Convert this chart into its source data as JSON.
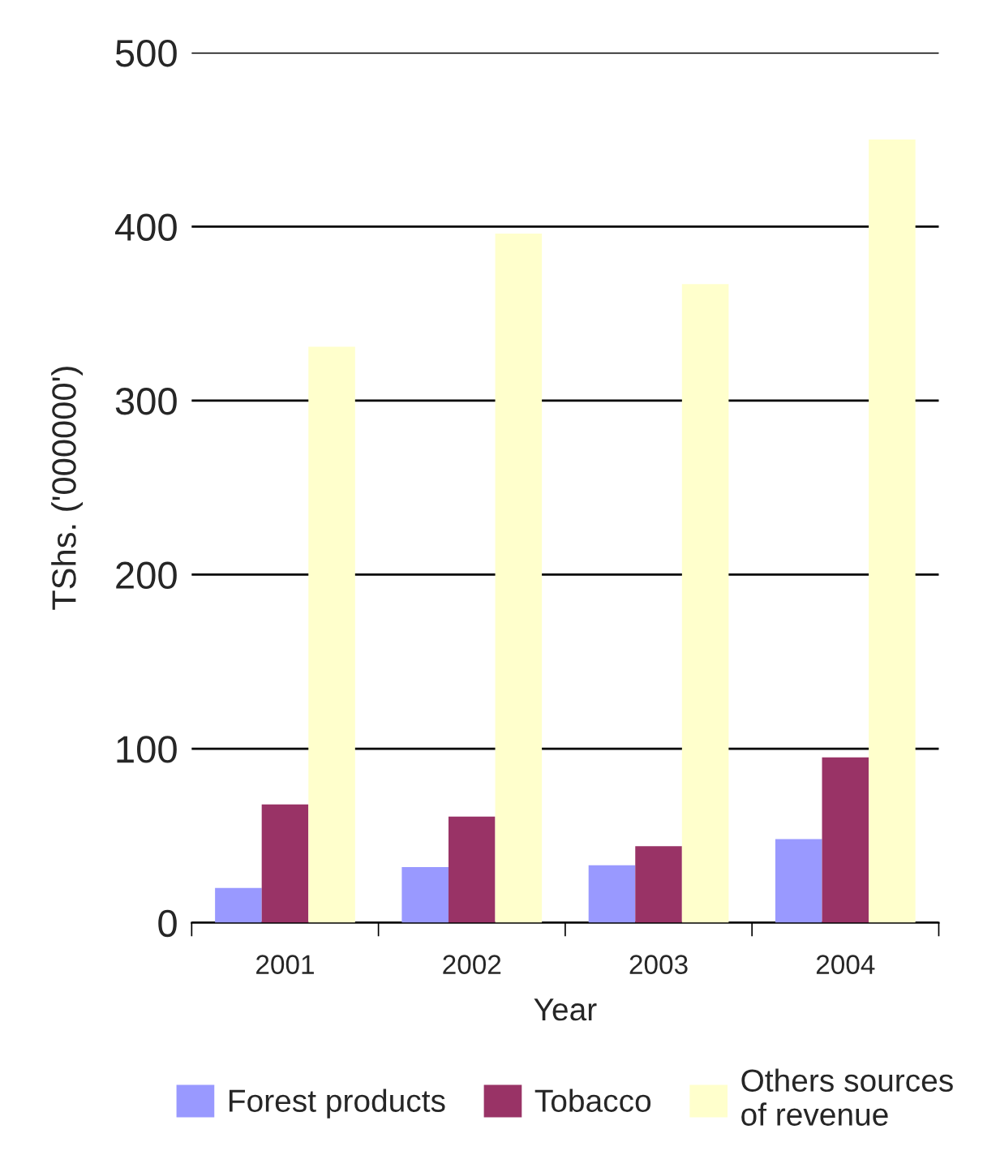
{
  "chart_data": {
    "type": "bar",
    "xlabel": "Year",
    "ylabel": "TShs. ('000000')",
    "categories": [
      "2001",
      "2002",
      "2003",
      "2004"
    ],
    "series": [
      {
        "name": "Forest products",
        "color": "#9999ff",
        "values": [
          20,
          32,
          33,
          48
        ]
      },
      {
        "name": "Tobacco",
        "color": "#993366",
        "values": [
          68,
          61,
          44,
          95
        ]
      },
      {
        "name": "Others sources\nof revenue",
        "color": "#ffffcc",
        "values": [
          331,
          396,
          367,
          450
        ]
      }
    ],
    "ylim": [
      0,
      500
    ],
    "yticks": [
      0,
      100,
      200,
      300,
      400,
      500
    ],
    "grid": "y",
    "legend": "bottom"
  }
}
